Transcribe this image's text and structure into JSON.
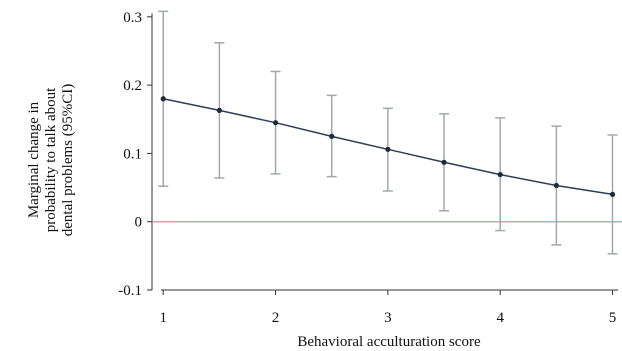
{
  "chart_data": {
    "type": "line",
    "xlabel": "Behavioral acculturation score",
    "ylabel_lines": [
      "Marginal change in",
      "probability to talk about",
      "dental problems  (95%CI)"
    ],
    "xlim": [
      0.9,
      5.12
    ],
    "ylim": [
      -0.1,
      0.31
    ],
    "x_ticks": [
      1,
      2,
      3,
      4,
      5
    ],
    "y_ticks": [
      -0.1,
      0,
      0.1,
      0.2,
      0.3
    ],
    "y_tick_labels": [
      "-0.1",
      "0",
      "0.1",
      "0.2",
      "0.3"
    ],
    "reference_line": 0,
    "grid": false,
    "series": [
      {
        "x": [
          1,
          1.5,
          2,
          2.5,
          3,
          3.5,
          4,
          4.5,
          5
        ],
        "y": [
          0.18,
          0.163,
          0.145,
          0.125,
          0.106,
          0.087,
          0.069,
          0.053,
          0.04
        ],
        "ci_lower": [
          0.052,
          0.064,
          0.07,
          0.066,
          0.045,
          0.016,
          -0.013,
          -0.034,
          -0.047
        ],
        "ci_upper": [
          0.308,
          0.262,
          0.22,
          0.185,
          0.166,
          0.158,
          0.152,
          0.14,
          0.127
        ]
      }
    ],
    "colors": {
      "line": "#2e3f55",
      "marker": "#1c2b3e",
      "error_bar": "#a3a8ae",
      "reference": "#e39aa4",
      "axis": "#333333"
    }
  }
}
